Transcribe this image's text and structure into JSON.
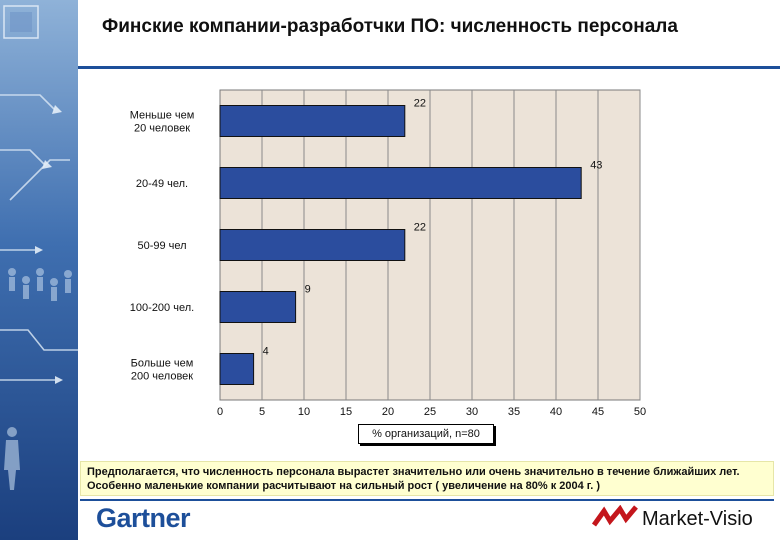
{
  "title": "Финские компании-разработчки ПО: численность персонала",
  "chart_data": {
    "type": "bar",
    "orientation": "horizontal",
    "categories": [
      "Меньше чем 20 человек",
      "20-49 чел.",
      "50-99 чел",
      "100-200 чел.",
      "Больше чем 200 человек"
    ],
    "category_lines": [
      [
        "Меньше чем",
        "20 человек"
      ],
      [
        "20-49 чел."
      ],
      [
        "50-99 чел"
      ],
      [
        "100-200 чел."
      ],
      [
        "Больше чем",
        "200 человек"
      ]
    ],
    "values": [
      22,
      43,
      22,
      9,
      4
    ],
    "xlabel": "% организаций, n=80",
    "xlim": [
      0,
      50
    ],
    "xticks": [
      0,
      5,
      10,
      15,
      20,
      25,
      30,
      35,
      40,
      45,
      50
    ],
    "grid": true,
    "bar_color": "#2b4d9e",
    "plot_bg": "#ece3d8"
  },
  "note": "Предполагается, что численность персонала вырастет значительно или очень значительно в течение ближайших лет. Особенно маленькие компании расчитывают на сильный рост ( увеличение на 80% к 2004 г. )",
  "logos": {
    "left": "Gartner",
    "right": "Market-Visio",
    "right_icon": "market-visio-icon"
  }
}
